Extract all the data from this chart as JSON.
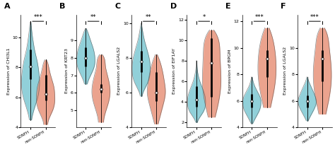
{
  "panels": [
    {
      "label": "A",
      "ylabel": "Expression of CHI3L1",
      "ylim": [
        4,
        11.5
      ],
      "yticks": [
        4,
        6,
        8,
        10
      ],
      "sig": "***",
      "groups": [
        {
          "name": "SONFH",
          "color": "#7EC8D3",
          "median": 8.05,
          "q1": 7.2,
          "q3": 9.2,
          "wlo": 4.5,
          "whi": 11.0,
          "violin_points_y": [
            4.5,
            5.0,
            5.5,
            6.0,
            6.5,
            7.0,
            7.5,
            8.0,
            8.5,
            9.0,
            9.5,
            10.0,
            10.5,
            11.0
          ],
          "violin_points_w": [
            0.05,
            0.12,
            0.22,
            0.32,
            0.38,
            0.4,
            0.38,
            0.34,
            0.28,
            0.2,
            0.14,
            0.09,
            0.05,
            0.02
          ]
        },
        {
          "name": "non-SONFH",
          "color": "#E8937A",
          "median": 6.2,
          "q1": 5.8,
          "q3": 7.5,
          "wlo": 4.2,
          "whi": 8.5,
          "violin_points_y": [
            4.2,
            4.7,
            5.2,
            5.7,
            6.2,
            6.7,
            7.2,
            7.7,
            8.2,
            8.5
          ],
          "violin_points_w": [
            0.05,
            0.1,
            0.18,
            0.22,
            0.22,
            0.2,
            0.15,
            0.1,
            0.06,
            0.02
          ]
        }
      ]
    },
    {
      "label": "B",
      "ylabel": "Expression of KRT23",
      "ylim": [
        4,
        10.5
      ],
      "yticks": [
        5,
        6,
        7,
        8,
        9
      ],
      "sig": "**",
      "groups": [
        {
          "name": "SONFH",
          "color": "#7EC8D3",
          "median": 8.0,
          "q1": 7.5,
          "q3": 8.6,
          "wlo": 6.5,
          "whi": 9.7,
          "violin_points_y": [
            6.5,
            7.0,
            7.5,
            8.0,
            8.5,
            9.0,
            9.5,
            9.7
          ],
          "violin_points_w": [
            0.06,
            0.2,
            0.35,
            0.38,
            0.32,
            0.2,
            0.08,
            0.02
          ]
        },
        {
          "name": "non-SONFH",
          "color": "#E8937A",
          "median": 6.2,
          "q1": 6.0,
          "q3": 6.5,
          "wlo": 4.3,
          "whi": 8.2,
          "violin_points_y": [
            4.3,
            5.0,
            5.5,
            6.0,
            6.5,
            7.0,
            7.5,
            8.0,
            8.2
          ],
          "violin_points_w": [
            0.04,
            0.08,
            0.12,
            0.14,
            0.13,
            0.1,
            0.07,
            0.05,
            0.02
          ]
        }
      ]
    },
    {
      "label": "C",
      "ylabel": "Expression of LGALS2",
      "ylim": [
        4,
        10.5
      ],
      "yticks": [
        4,
        6,
        8,
        10
      ],
      "sig": "**",
      "groups": [
        {
          "name": "SONFH",
          "color": "#7EC8D3",
          "median": 7.8,
          "q1": 7.2,
          "q3": 8.4,
          "wlo": 5.8,
          "whi": 10.0,
          "violin_points_y": [
            5.8,
            6.2,
            6.6,
            7.0,
            7.4,
            7.8,
            8.2,
            8.6,
            9.0,
            9.4,
            9.8,
            10.0
          ],
          "violin_points_w": [
            0.04,
            0.14,
            0.28,
            0.36,
            0.38,
            0.36,
            0.3,
            0.22,
            0.14,
            0.08,
            0.03,
            0.01
          ]
        },
        {
          "name": "non-SONFH",
          "color": "#E8937A",
          "median": 6.0,
          "q1": 5.5,
          "q3": 7.2,
          "wlo": 4.2,
          "whi": 8.2,
          "violin_points_y": [
            4.2,
            4.8,
            5.4,
            6.0,
            6.6,
            7.2,
            7.8,
            8.2
          ],
          "violin_points_w": [
            0.04,
            0.1,
            0.16,
            0.2,
            0.18,
            0.14,
            0.08,
            0.02
          ]
        }
      ]
    },
    {
      "label": "D",
      "ylabel": "Expression of EIF1AY",
      "ylim": [
        1.5,
        12.5
      ],
      "yticks": [
        2,
        4,
        6,
        8,
        10,
        12
      ],
      "sig": "*",
      "groups": [
        {
          "name": "SONFH",
          "color": "#7EC8D3",
          "median": 4.2,
          "q1": 3.5,
          "q3": 5.5,
          "wlo": 2.0,
          "whi": 8.0,
          "violin_points_y": [
            2.0,
            2.5,
            3.0,
            3.5,
            4.0,
            4.5,
            5.0,
            5.5,
            6.0,
            6.5,
            7.0,
            7.5,
            8.0
          ],
          "violin_points_w": [
            0.04,
            0.14,
            0.28,
            0.36,
            0.38,
            0.36,
            0.3,
            0.22,
            0.14,
            0.08,
            0.04,
            0.02,
            0.01
          ]
        },
        {
          "name": "non-SONFH",
          "color": "#E8937A",
          "median": 7.8,
          "q1": 4.5,
          "q3": 10.2,
          "wlo": 2.5,
          "whi": 11.0,
          "violin_points_y": [
            2.5,
            4.0,
            5.5,
            7.0,
            8.5,
            10.0,
            11.0
          ],
          "violin_points_w": [
            0.05,
            0.1,
            0.13,
            0.13,
            0.12,
            0.1,
            0.03
          ]
        }
      ]
    },
    {
      "label": "E",
      "ylabel": "Expression of BPGM",
      "ylim": [
        4,
        12.5
      ],
      "yticks": [
        4,
        6,
        8,
        10,
        12
      ],
      "sig": "***",
      "groups": [
        {
          "name": "SONFH",
          "color": "#7EC8D3",
          "median": 6.0,
          "q1": 5.5,
          "q3": 6.5,
          "wlo": 4.3,
          "whi": 7.8,
          "violin_points_y": [
            4.3,
            4.8,
            5.3,
            5.8,
            6.3,
            6.8,
            7.3,
            7.8
          ],
          "violin_points_w": [
            0.04,
            0.18,
            0.32,
            0.38,
            0.34,
            0.2,
            0.08,
            0.02
          ]
        },
        {
          "name": "non-SONFH",
          "color": "#E8937A",
          "median": 9.2,
          "q1": 7.8,
          "q3": 9.8,
          "wlo": 5.5,
          "whi": 11.5,
          "violin_points_y": [
            5.5,
            6.5,
            7.5,
            8.5,
            9.5,
            10.5,
            11.5
          ],
          "violin_points_w": [
            0.05,
            0.09,
            0.12,
            0.13,
            0.12,
            0.09,
            0.03
          ]
        }
      ]
    },
    {
      "label": "F",
      "ylabel": "Expression of LGALS2",
      "ylim": [
        4,
        12.5
      ],
      "yticks": [
        4,
        6,
        8,
        10
      ],
      "sig": "***",
      "groups": [
        {
          "name": "SONFH",
          "color": "#7EC8D3",
          "median": 6.0,
          "q1": 5.5,
          "q3": 6.4,
          "wlo": 4.5,
          "whi": 7.8,
          "violin_points_y": [
            4.5,
            5.0,
            5.5,
            6.0,
            6.5,
            7.0,
            7.5,
            7.8
          ],
          "violin_points_w": [
            0.04,
            0.18,
            0.32,
            0.38,
            0.3,
            0.18,
            0.06,
            0.02
          ]
        },
        {
          "name": "non-SONFH",
          "color": "#E8937A",
          "median": 9.2,
          "q1": 7.5,
          "q3": 9.8,
          "wlo": 5.0,
          "whi": 11.5,
          "violin_points_y": [
            5.0,
            6.0,
            7.0,
            8.0,
            9.0,
            10.0,
            11.0,
            11.5
          ],
          "violin_points_w": [
            0.05,
            0.09,
            0.12,
            0.13,
            0.12,
            0.1,
            0.07,
            0.03
          ]
        }
      ]
    }
  ],
  "bg_color": "#FFFFFF",
  "group_labels": [
    "SONFH",
    "non-SONFH"
  ]
}
